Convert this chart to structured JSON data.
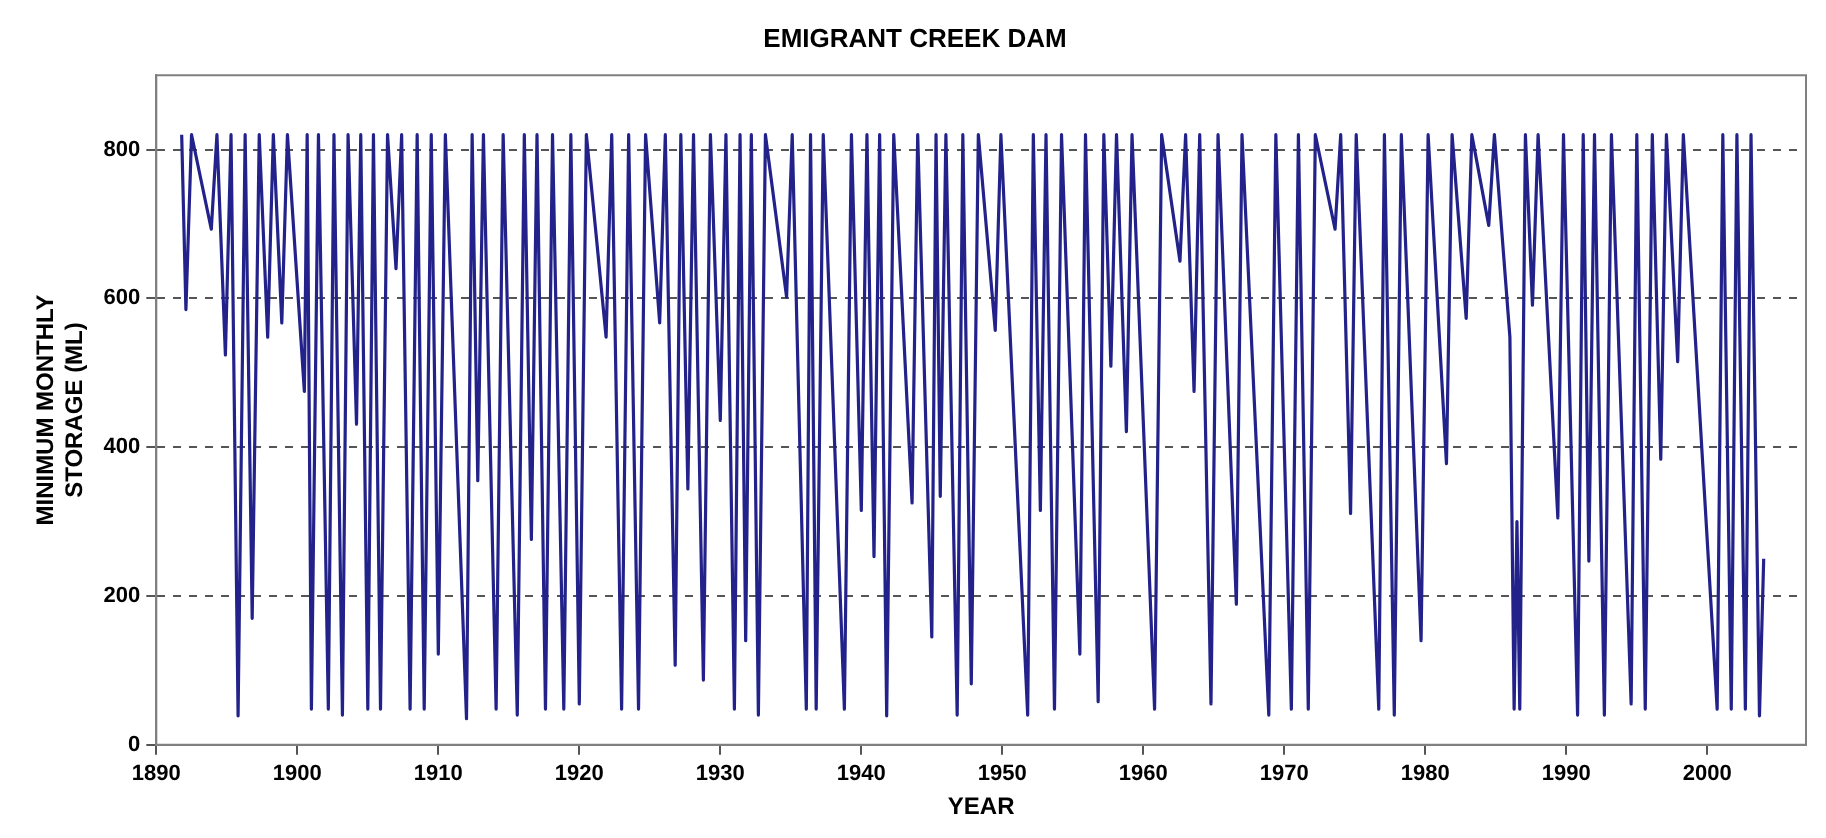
{
  "chart_data": {
    "type": "line",
    "title": "EMIGRANT CREEK DAM",
    "xlabel": "YEAR",
    "ylabel": "MINIMUM MONTHLY STORAGE (ML)",
    "xlim": [
      1890,
      2007
    ],
    "xticks": [
      1890,
      1900,
      1910,
      1920,
      1930,
      1940,
      1950,
      1960,
      1970,
      1980,
      1990,
      2000
    ],
    "ylim": [
      0,
      900
    ],
    "yticks": [
      0,
      200,
      400,
      600,
      800
    ],
    "grid": "y",
    "legend": false,
    "series": [
      {
        "color": "#22228a",
        "x": [
          1891.8,
          1892.1,
          1892.5,
          1893.9,
          1894.3,
          1894.9,
          1895.3,
          1895.8,
          1896.3,
          1896.8,
          1897.3,
          1897.9,
          1898.3,
          1898.9,
          1899.3,
          1900.5,
          1900.7,
          1901,
          1901.5,
          1902.2,
          1902.6,
          1903.2,
          1903.6,
          1904.2,
          1904.5,
          1905,
          1905.4,
          1905.9,
          1906.4,
          1907,
          1907.4,
          1908,
          1908.5,
          1909,
          1909.5,
          1910,
          1910.5,
          1912,
          1912.4,
          1912.8,
          1913.2,
          1914.1,
          1914.6,
          1915.6,
          1916.1,
          1916.6,
          1917,
          1917.6,
          1918.1,
          1918.9,
          1919.4,
          1920,
          1920.5,
          1921.9,
          1922.3,
          1923,
          1923.5,
          1924.2,
          1924.7,
          1925.7,
          1926.1,
          1926.8,
          1927.2,
          1927.7,
          1928.1,
          1928.8,
          1929.3,
          1930,
          1930.4,
          1931,
          1931.4,
          1931.8,
          1932.2,
          1932.7,
          1933.2,
          1934.7,
          1935.1,
          1936.1,
          1936.4,
          1936.8,
          1937.3,
          1938.8,
          1939.3,
          1940,
          1940.4,
          1940.9,
          1941.3,
          1941.8,
          1942.3,
          1943.6,
          1944,
          1945,
          1945.3,
          1945.6,
          1946,
          1946.8,
          1947.2,
          1947.8,
          1948.3,
          1949.5,
          1949.9,
          1951.8,
          1952.2,
          1952.7,
          1953.1,
          1953.7,
          1954.2,
          1955.5,
          1955.9,
          1956.8,
          1957.2,
          1957.7,
          1958.1,
          1958.8,
          1959.2,
          1960.8,
          1961.3,
          1962.6,
          1963,
          1963.6,
          1964,
          1964.8,
          1965.3,
          1966.6,
          1967,
          1968.9,
          1969.4,
          1970.5,
          1971,
          1971.7,
          1972.2,
          1973.6,
          1974,
          1974.7,
          1975.1,
          1976.7,
          1977.1,
          1977.8,
          1978.3,
          1979.7,
          1980.2,
          1981.5,
          1981.9,
          1982.9,
          1983.3,
          1984.5,
          1984.9,
          1986,
          1986.3,
          1986.5,
          1986.7,
          1987.1,
          1987.6,
          1988,
          1989.4,
          1989.8,
          1990.8,
          1991.2,
          1991.6,
          1992,
          1992.7,
          1993.2,
          1994.6,
          1995,
          1995.6,
          1996.1,
          1996.7,
          1997.1,
          1997.9,
          1998.3,
          2000.7,
          2001.1,
          2001.7,
          2002.1,
          2002.7,
          2003.1,
          2003.7,
          2004
        ],
        "values": [
          820,
          585,
          820,
          693,
          820,
          524,
          820,
          39,
          820,
          170,
          820,
          548,
          820,
          567,
          820,
          475,
          820,
          48,
          820,
          48,
          820,
          40,
          820,
          431,
          820,
          48,
          820,
          48,
          820,
          640,
          820,
          48,
          820,
          48,
          820,
          122,
          820,
          35,
          820,
          355,
          820,
          48,
          820,
          40,
          820,
          276,
          820,
          48,
          820,
          48,
          820,
          55,
          820,
          548,
          820,
          48,
          820,
          48,
          820,
          567,
          820,
          107,
          820,
          344,
          820,
          87,
          820,
          436,
          820,
          48,
          820,
          140,
          820,
          40,
          820,
          602,
          820,
          48,
          820,
          48,
          820,
          48,
          820,
          315,
          820,
          253,
          820,
          39,
          820,
          325,
          820,
          145,
          820,
          334,
          820,
          40,
          820,
          82,
          820,
          557,
          820,
          40,
          820,
          315,
          820,
          48,
          820,
          122,
          820,
          58,
          820,
          509,
          820,
          421,
          820,
          48,
          820,
          650,
          820,
          475,
          820,
          55,
          820,
          189,
          820,
          40,
          820,
          48,
          820,
          48,
          820,
          693,
          820,
          311,
          820,
          48,
          820,
          40,
          820,
          140,
          820,
          378,
          820,
          573,
          820,
          698,
          820,
          548,
          48,
          300,
          48,
          820,
          591,
          820,
          305,
          820,
          40,
          820,
          247,
          820,
          40,
          820,
          55,
          820,
          48,
          820,
          384,
          820,
          515,
          820,
          48,
          820,
          48,
          820,
          48,
          820,
          39,
          250
        ]
      }
    ]
  }
}
